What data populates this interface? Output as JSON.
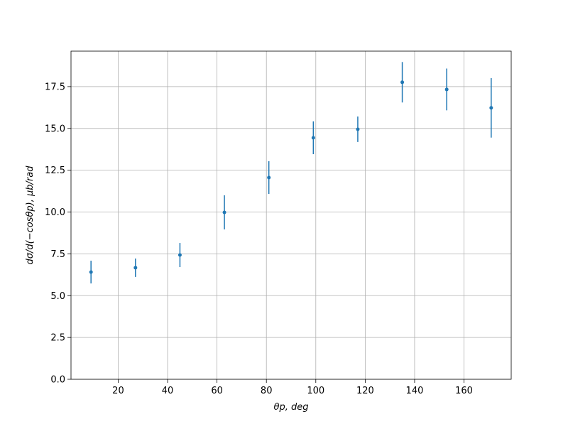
{
  "chart_data": {
    "type": "errorbar",
    "xlabel": "θp, deg",
    "ylabel": "dσ/d(−cosθp), μb/rad",
    "x": [
      9,
      27,
      45,
      63,
      81,
      99,
      117,
      135,
      153,
      171
    ],
    "values": [
      6.41,
      6.67,
      7.43,
      9.98,
      12.06,
      14.44,
      14.95,
      17.76,
      17.33,
      16.23
    ],
    "errors": [
      0.68,
      0.55,
      0.72,
      1.02,
      0.98,
      0.98,
      0.76,
      1.21,
      1.25,
      1.78
    ],
    "color": "#1f77b4",
    "xlim": [
      0.9,
      179.1
    ],
    "xticks": [
      20,
      40,
      60,
      80,
      100,
      120,
      140,
      160
    ],
    "ylim": [
      0,
      19.62
    ],
    "yticks": [
      {
        "value": 0,
        "label": "0.0"
      },
      2.5,
      {
        "value": 5,
        "label": "5.0"
      },
      7.5,
      {
        "value": 10,
        "label": "10.0"
      },
      12.5,
      {
        "value": 15,
        "label": "15.0"
      },
      17.5
    ],
    "grid": true
  }
}
